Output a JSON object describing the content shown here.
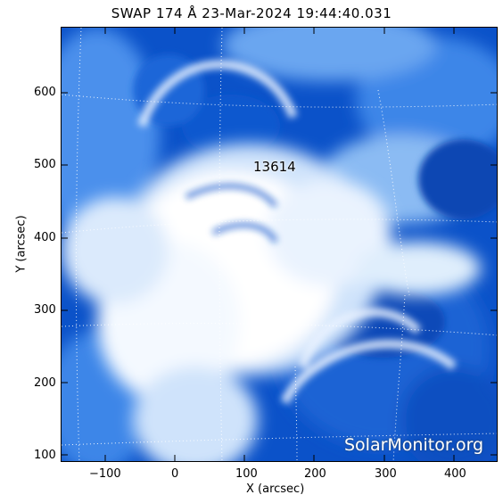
{
  "title": "SWAP 174 Å 23-Mar-2024 19:44:40.031",
  "axes": {
    "x_label": "X (arcsec)",
    "y_label": "Y (arcsec)",
    "x_ticks": [
      "−100",
      "0",
      "100",
      "200",
      "300",
      "400"
    ],
    "y_ticks": [
      "100",
      "200",
      "300",
      "400",
      "500",
      "600"
    ]
  },
  "active_region_label": "13614",
  "watermark": "SolarMonitor.org",
  "colors": {
    "deep": "#0b52c9",
    "mid": "#3d86e8",
    "light": "#a9cdf5",
    "bright": "#ffffff"
  }
}
